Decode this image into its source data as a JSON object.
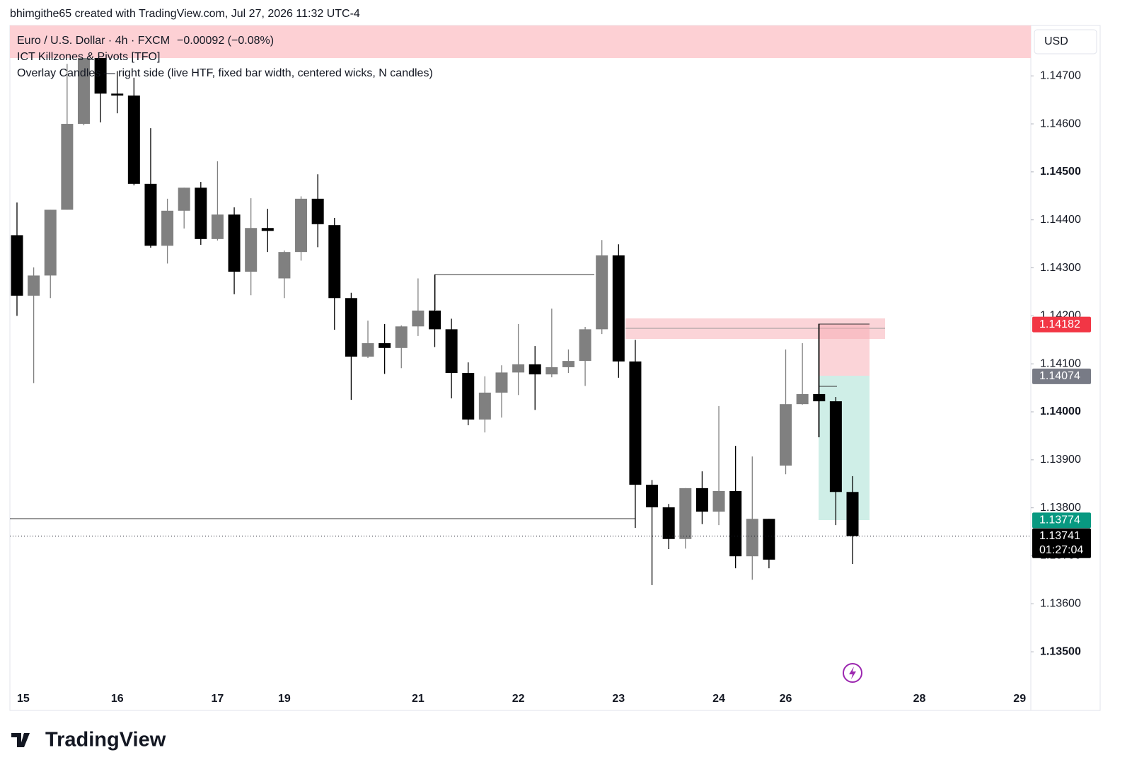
{
  "chart_data": {
    "type": "candlestick",
    "title": "bhimgithe65 created with TradingView.com, Jul 27, 2026 11:32 UTC-4",
    "symbol": "Euro / U.S. Dollar · 4h · FXCM",
    "change": "−0.00092 (−0.08%)",
    "indicators": [
      "ICT Killzones & Pivots [TFO]",
      "Overlay Candles — right side (live HTF, fixed bar width, centered wicks, N candles)"
    ],
    "currency": "USD",
    "countdown": "01:27:04",
    "brand": "TradingView",
    "up_color": "#808080",
    "down_color": "#000000",
    "categories": [
      "15",
      null,
      null,
      null,
      null,
      null,
      "16",
      null,
      null,
      null,
      null,
      null,
      "17",
      null,
      null,
      null,
      "19",
      null,
      null,
      null,
      null,
      null,
      null,
      null,
      "21",
      null,
      null,
      null,
      null,
      null,
      "22",
      null,
      null,
      null,
      null,
      null,
      "23",
      null,
      null,
      null,
      null,
      null,
      "24",
      null,
      null,
      null,
      "26",
      null,
      null,
      null,
      null,
      null,
      null,
      null,
      "28",
      null,
      null,
      null,
      null,
      null,
      "29"
    ],
    "open": [
      1.14368,
      1.14242,
      1.14284,
      1.14421,
      1.146,
      1.1474,
      1.14663,
      1.14659,
      1.14475,
      1.14346,
      1.14419,
      1.14467,
      1.1436,
      1.14411,
      1.14292,
      1.14383,
      1.14278,
      1.14333,
      1.14444,
      1.14389,
      1.14237,
      1.14115,
      1.14143,
      1.14133,
      1.14178,
      1.14211,
      1.14172,
      1.14081,
      1.13984,
      1.1404,
      1.14082,
      1.14099,
      1.14078,
      1.14093,
      1.14106,
      1.14172,
      1.14326,
      1.14105,
      1.13848,
      1.13801,
      1.13735,
      1.13841,
      1.13792,
      1.13835,
      1.13699,
      1.13777,
      1.13888,
      1.14016,
      1.14037,
      1.14022,
      1.13833,
      null,
      null,
      null,
      null,
      null,
      null,
      null,
      null,
      null,
      null
    ],
    "high": [
      1.14436,
      1.14301,
      1.14421,
      1.14725,
      1.14769,
      1.14747,
      1.1471,
      1.14696,
      1.14591,
      1.14444,
      1.14467,
      1.14479,
      1.14522,
      1.14426,
      1.14445,
      1.14423,
      1.14336,
      1.14449,
      1.14495,
      1.14404,
      1.14248,
      1.1419,
      1.14183,
      1.1418,
      1.14278,
      1.14286,
      1.14194,
      1.14103,
      1.14074,
      1.14097,
      1.14183,
      1.14137,
      1.14215,
      1.1413,
      1.14177,
      1.14358,
      1.14349,
      1.1415,
      1.13858,
      1.13808,
      1.13841,
      1.13876,
      1.14012,
      1.13929,
      1.13907,
      1.13777,
      1.1413,
      1.14143,
      1.14183,
      1.14031,
      1.13866,
      null,
      null,
      null,
      null,
      null,
      null,
      null,
      null,
      null,
      null
    ],
    "low": [
      1.142,
      1.1406,
      1.14237,
      1.14421,
      1.14597,
      1.14603,
      1.14622,
      1.14472,
      1.14342,
      1.14309,
      1.14382,
      1.14348,
      1.14357,
      1.14245,
      1.14243,
      1.14333,
      1.14237,
      1.14315,
      1.14343,
      1.14171,
      1.14025,
      1.14112,
      1.14079,
      1.14091,
      1.14158,
      1.14135,
      1.14028,
      1.13972,
      1.13957,
      1.13988,
      1.14035,
      1.14004,
      1.14072,
      1.14081,
      1.14054,
      1.14162,
      1.14071,
      1.13758,
      1.13639,
      1.13714,
      1.13715,
      1.13766,
      1.13764,
      1.13674,
      1.1365,
      1.13674,
      1.1387,
      1.14015,
      1.13947,
      1.13764,
      1.13683,
      null,
      null,
      null,
      null,
      null,
      null,
      null,
      null,
      null,
      null
    ],
    "close": [
      1.14242,
      1.14284,
      1.14421,
      1.146,
      1.1474,
      1.14663,
      1.14659,
      1.14475,
      1.14346,
      1.14419,
      1.14467,
      1.1436,
      1.14411,
      1.14292,
      1.14383,
      1.14377,
      1.14333,
      1.14444,
      1.14391,
      1.14237,
      1.14115,
      1.14143,
      1.14133,
      1.14178,
      1.14211,
      1.14172,
      1.14081,
      1.13984,
      1.1404,
      1.14082,
      1.14099,
      1.14078,
      1.14093,
      1.14106,
      1.14172,
      1.14326,
      1.14105,
      1.13848,
      1.13801,
      1.13735,
      1.13841,
      1.13792,
      1.13835,
      1.13699,
      1.13777,
      1.13692,
      1.14016,
      1.14037,
      1.14022,
      1.13833,
      1.13741,
      null,
      null,
      null,
      null,
      null,
      null,
      null,
      null,
      null,
      null
    ],
    "ylim": [
      1.13428,
      1.14805
    ],
    "yticks": [
      {
        "value": 1.135,
        "label": "1.13500"
      },
      {
        "value": 1.136,
        "label": "1.13600"
      },
      {
        "value": 1.137,
        "label": "1.13700"
      },
      {
        "value": 1.138,
        "label": "1.13800"
      },
      {
        "value": 1.139,
        "label": "1.13900"
      },
      {
        "value": 1.14,
        "label": "1.14000"
      },
      {
        "value": 1.141,
        "label": "1.14100"
      },
      {
        "value": 1.142,
        "label": "1.14200"
      },
      {
        "value": 1.143,
        "label": "1.14300"
      },
      {
        "value": 1.144,
        "label": "1.14400"
      },
      {
        "value": 1.145,
        "label": "1.14500"
      },
      {
        "value": 1.146,
        "label": "1.14600"
      },
      {
        "value": 1.147,
        "label": "1.14700"
      }
    ],
    "price_labels": [
      {
        "value": 1.14182,
        "color": "#f23645"
      },
      {
        "value": 1.14074,
        "color": "#787b86"
      },
      {
        "value": 1.13774,
        "color": "#089981"
      },
      {
        "value": 1.13741,
        "color": "#000000"
      }
    ]
  }
}
